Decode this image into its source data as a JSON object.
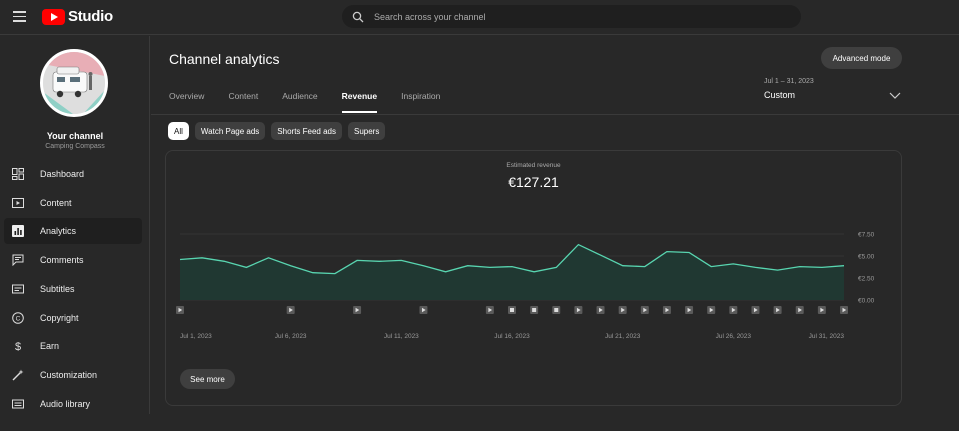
{
  "topbar": {
    "logo_text": "Studio",
    "search_placeholder": "Search across your channel"
  },
  "sidebar": {
    "channel_label": "Your channel",
    "channel_name": "Camping Compass",
    "items": [
      {
        "label": "Dashboard",
        "icon": "dashboard-icon",
        "active": false
      },
      {
        "label": "Content",
        "icon": "content-icon",
        "active": false
      },
      {
        "label": "Analytics",
        "icon": "analytics-icon",
        "active": true
      },
      {
        "label": "Comments",
        "icon": "comments-icon",
        "active": false
      },
      {
        "label": "Subtitles",
        "icon": "subtitles-icon",
        "active": false
      },
      {
        "label": "Copyright",
        "icon": "copyright-icon",
        "active": false
      },
      {
        "label": "Earn",
        "icon": "earn-icon",
        "active": false
      },
      {
        "label": "Customization",
        "icon": "customization-icon",
        "active": false
      },
      {
        "label": "Audio library",
        "icon": "audio-library-icon",
        "active": false
      }
    ]
  },
  "main": {
    "title": "Channel analytics",
    "advanced_mode": "Advanced mode",
    "tabs": [
      "Overview",
      "Content",
      "Audience",
      "Revenue",
      "Inspiration"
    ],
    "active_tab": "Revenue",
    "date_range": "Jul 1 – 31, 2023",
    "date_choice": "Custom",
    "chips": [
      "All",
      "Watch Page ads",
      "Shorts Feed ads",
      "Supers"
    ],
    "active_chip": "All",
    "metric_label": "Estimated revenue",
    "metric_value": "€127.21",
    "see_more": "See more"
  },
  "chart_data": {
    "type": "area",
    "title": "",
    "x": [
      "Jul 1",
      "Jul 2",
      "Jul 3",
      "Jul 4",
      "Jul 5",
      "Jul 6",
      "Jul 7",
      "Jul 8",
      "Jul 9",
      "Jul 10",
      "Jul 11",
      "Jul 12",
      "Jul 13",
      "Jul 14",
      "Jul 15",
      "Jul 16",
      "Jul 17",
      "Jul 18",
      "Jul 19",
      "Jul 20",
      "Jul 21",
      "Jul 22",
      "Jul 23",
      "Jul 24",
      "Jul 25",
      "Jul 26",
      "Jul 27",
      "Jul 28",
      "Jul 29",
      "Jul 30",
      "Jul 31"
    ],
    "values": [
      4.6,
      4.8,
      4.4,
      3.7,
      4.8,
      3.9,
      3.1,
      3.0,
      4.5,
      4.4,
      4.5,
      3.9,
      3.2,
      3.9,
      3.7,
      3.8,
      3.2,
      3.7,
      6.3,
      5.1,
      3.9,
      3.8,
      5.5,
      5.4,
      3.8,
      4.1,
      3.7,
      3.4,
      3.8,
      3.7,
      3.9
    ],
    "ylim": [
      0,
      7.5
    ],
    "y_ticks": [
      "€0.00",
      "€2.50",
      "€5.00",
      "€7.50"
    ],
    "x_tick_labels": [
      "Jul 1, 2023",
      "Jul 6, 2023",
      "Jul 11, 2023",
      "Jul 16, 2023",
      "Jul 21, 2023",
      "Jul 26, 2023",
      "Jul 31, 2023"
    ],
    "x_tick_days": [
      1,
      6,
      11,
      16,
      21,
      26,
      31
    ],
    "markers": [
      "play",
      "",
      "",
      "",
      "",
      "play",
      "",
      "",
      "play",
      "",
      "",
      "play",
      "",
      "",
      "play",
      "S",
      "S",
      "S",
      "play",
      "play",
      "play",
      "play",
      "play",
      "play",
      "play",
      "play",
      "play",
      "play",
      "play",
      "play",
      "play"
    ],
    "colors": {
      "line": "#58d5b0",
      "fill": "#1f3a33",
      "grid": "#3a3a3a"
    },
    "grid": true
  }
}
